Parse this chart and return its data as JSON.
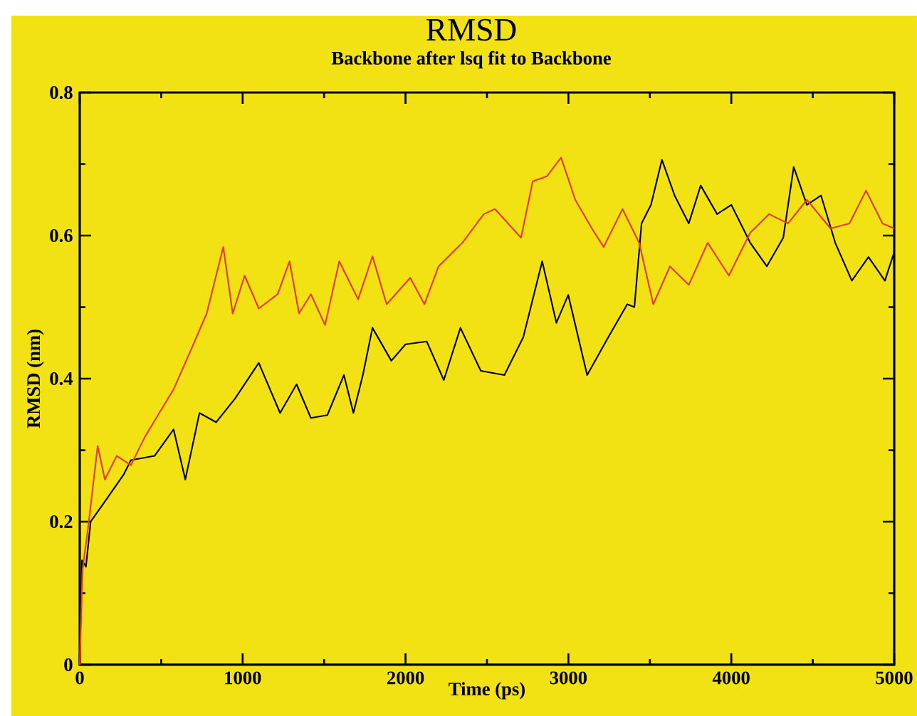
{
  "chart_data": {
    "type": "line",
    "title": "RMSD",
    "subtitle": "Backbone after lsq fit to Backbone",
    "xlabel": "Time (ps)",
    "ylabel": "RMSD (nm)",
    "xlim": [
      0,
      5000
    ],
    "ylim": [
      0,
      0.8
    ],
    "xticks": [
      0,
      1000,
      2000,
      3000,
      4000,
      5000
    ],
    "yticks": [
      0,
      0.2,
      0.4,
      0.6,
      0.8
    ],
    "series": [
      {
        "color": "#000000",
        "x": [
          0,
          14,
          38,
          67,
          169,
          270,
          314,
          459,
          576,
          648,
          735,
          837,
          953,
          1099,
          1230,
          1331,
          1419,
          1520,
          1622,
          1680,
          1738,
          1797,
          1913,
          2000,
          2130,
          2235,
          2337,
          2462,
          2607,
          2723,
          2839,
          2926,
          2999,
          3115,
          3245,
          3361,
          3405,
          3449,
          3507,
          3574,
          3652,
          3739,
          3812,
          3913,
          4000,
          4116,
          4218,
          4319,
          4383,
          4464,
          4551,
          4638,
          4740,
          4842,
          4943,
          5000
        ],
        "values": [
          0.01,
          0.146,
          0.137,
          0.2,
          0.233,
          0.266,
          0.286,
          0.292,
          0.329,
          0.259,
          0.352,
          0.339,
          0.372,
          0.422,
          0.352,
          0.392,
          0.345,
          0.349,
          0.405,
          0.352,
          0.405,
          0.471,
          0.425,
          0.448,
          0.452,
          0.398,
          0.471,
          0.411,
          0.405,
          0.458,
          0.564,
          0.478,
          0.517,
          0.405,
          0.458,
          0.504,
          0.5,
          0.617,
          0.643,
          0.706,
          0.656,
          0.617,
          0.67,
          0.63,
          0.643,
          0.59,
          0.557,
          0.597,
          0.696,
          0.643,
          0.656,
          0.59,
          0.537,
          0.57,
          0.537,
          0.577
        ]
      },
      {
        "color": "#e8392a",
        "x": [
          0,
          17,
          52,
          110,
          154,
          227,
          314,
          401,
          488,
          576,
          692,
          779,
          881,
          939,
          1012,
          1099,
          1215,
          1288,
          1346,
          1419,
          1506,
          1593,
          1709,
          1797,
          1884,
          2029,
          2116,
          2203,
          2349,
          2480,
          2549,
          2709,
          2781,
          2868,
          2955,
          3042,
          3144,
          3216,
          3332,
          3434,
          3521,
          3623,
          3739,
          3855,
          3985,
          4116,
          4232,
          4348,
          4464,
          4609,
          4725,
          4827,
          4928,
          5000
        ],
        "values": [
          0.0,
          0.133,
          0.193,
          0.306,
          0.259,
          0.292,
          0.279,
          0.319,
          0.352,
          0.385,
          0.445,
          0.491,
          0.584,
          0.491,
          0.544,
          0.498,
          0.518,
          0.564,
          0.491,
          0.518,
          0.475,
          0.564,
          0.511,
          0.571,
          0.504,
          0.541,
          0.504,
          0.557,
          0.59,
          0.63,
          0.637,
          0.597,
          0.676,
          0.683,
          0.709,
          0.65,
          0.61,
          0.584,
          0.637,
          0.59,
          0.504,
          0.557,
          0.531,
          0.59,
          0.544,
          0.604,
          0.63,
          0.617,
          0.65,
          0.61,
          0.617,
          0.663,
          0.617,
          0.61
        ]
      }
    ]
  }
}
